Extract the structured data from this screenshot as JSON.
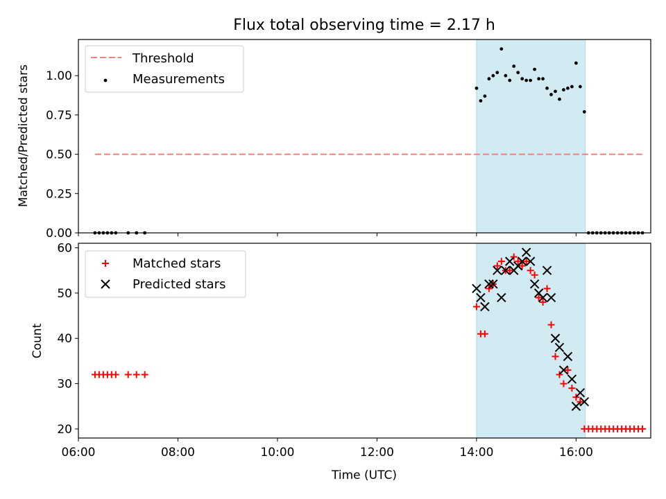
{
  "figure_title": "Flux total observing time = 2.17 h",
  "colors": {
    "threshold": "#f08080",
    "measurement": "#000000",
    "matched": "#ff0000",
    "predicted": "#000000",
    "shade": "#add8e6"
  },
  "chart_data": [
    {
      "type": "scatter",
      "title": "Flux total observing time = 2.17 h",
      "xlabel": "",
      "ylabel": "Matched/Predicted stars",
      "xlim": [
        "06:00",
        "17:30"
      ],
      "ylim": [
        0,
        1.23
      ],
      "xticks": [
        "06:00",
        "08:00",
        "10:00",
        "12:00",
        "14:00",
        "16:00"
      ],
      "yticks": [
        "0.00",
        "0.25",
        "0.50",
        "0.75",
        "1.00"
      ],
      "shaded_region": {
        "x_start": "14:00",
        "x_end": "16:11"
      },
      "grid": false,
      "legend_position": "top-left",
      "series": [
        {
          "name": "Threshold",
          "kind": "dashed-line",
          "x": [
            "06:20",
            "17:20"
          ],
          "y": [
            0.5,
            0.5
          ]
        },
        {
          "name": "Measurements",
          "kind": "points",
          "x": [
            "06:20",
            "06:25",
            "06:30",
            "06:35",
            "06:40",
            "06:45",
            "07:00",
            "07:10",
            "07:20",
            "14:00",
            "14:05",
            "14:10",
            "14:15",
            "14:20",
            "14:25",
            "14:30",
            "14:35",
            "14:40",
            "14:45",
            "14:50",
            "14:55",
            "15:00",
            "15:05",
            "15:10",
            "15:15",
            "15:20",
            "15:25",
            "15:30",
            "15:35",
            "15:40",
            "15:45",
            "15:50",
            "15:55",
            "16:00",
            "16:05",
            "16:10",
            "16:15",
            "16:20",
            "16:25",
            "16:30",
            "16:35",
            "16:40",
            "16:45",
            "16:50",
            "16:55",
            "17:00",
            "17:05",
            "17:10",
            "17:15",
            "17:20"
          ],
          "y": [
            0,
            0,
            0,
            0,
            0,
            0,
            0,
            0,
            0,
            0.92,
            0.84,
            0.87,
            0.98,
            1.0,
            1.02,
            1.17,
            1.0,
            0.97,
            1.06,
            1.02,
            0.98,
            0.97,
            0.97,
            1.04,
            0.98,
            0.98,
            0.92,
            0.88,
            0.9,
            0.85,
            0.91,
            0.92,
            0.93,
            1.08,
            0.93,
            0.77,
            0,
            0,
            0,
            0,
            0,
            0,
            0,
            0,
            0,
            0,
            0,
            0,
            0,
            0
          ]
        }
      ]
    },
    {
      "type": "scatter",
      "title": "",
      "xlabel": "Time (UTC)",
      "ylabel": "Count",
      "xlim": [
        "06:00",
        "17:30"
      ],
      "ylim": [
        18,
        61
      ],
      "xticks": [
        "06:00",
        "08:00",
        "10:00",
        "12:00",
        "14:00",
        "16:00"
      ],
      "yticks": [
        "20",
        "30",
        "40",
        "50",
        "60"
      ],
      "shaded_region": {
        "x_start": "14:00",
        "x_end": "16:11"
      },
      "grid": false,
      "legend_position": "top-left",
      "series": [
        {
          "name": "Matched stars",
          "marker": "plus",
          "x": [
            "06:20",
            "06:25",
            "06:30",
            "06:35",
            "06:40",
            "06:45",
            "07:00",
            "07:10",
            "07:20",
            "14:00",
            "14:05",
            "14:10",
            "14:15",
            "14:20",
            "14:25",
            "14:30",
            "14:35",
            "14:40",
            "14:45",
            "14:50",
            "14:55",
            "15:00",
            "15:05",
            "15:10",
            "15:15",
            "15:20",
            "15:25",
            "15:30",
            "15:35",
            "15:40",
            "15:45",
            "15:50",
            "15:55",
            "16:00",
            "16:05",
            "16:10",
            "16:15",
            "16:20",
            "16:25",
            "16:30",
            "16:35",
            "16:40",
            "16:45",
            "16:50",
            "16:55",
            "17:00",
            "17:05",
            "17:10",
            "17:15",
            "17:20"
          ],
          "y": [
            32,
            32,
            32,
            32,
            32,
            32,
            32,
            32,
            32,
            47,
            41,
            41,
            51,
            52,
            56,
            57,
            55,
            55,
            58,
            57,
            56,
            57,
            55,
            54,
            49,
            48,
            51,
            43,
            36,
            32,
            30,
            33,
            29,
            27,
            26,
            20,
            20,
            20,
            20,
            20,
            20,
            20,
            20,
            20,
            20,
            20,
            20,
            20,
            20,
            20
          ]
        },
        {
          "name": "Predicted stars",
          "marker": "x",
          "x": [
            "14:00",
            "14:05",
            "14:10",
            "14:15",
            "14:20",
            "14:25",
            "14:30",
            "14:35",
            "14:40",
            "14:45",
            "14:50",
            "14:55",
            "15:00",
            "15:05",
            "15:10",
            "15:15",
            "15:20",
            "15:25",
            "15:30",
            "15:35",
            "15:40",
            "15:45",
            "15:50",
            "15:55",
            "16:00",
            "16:05",
            "16:10"
          ],
          "y": [
            51,
            49,
            47,
            52,
            52,
            55,
            49,
            55,
            57,
            55,
            56,
            57,
            59,
            57,
            52,
            50,
            49,
            55,
            49,
            40,
            38,
            33,
            36,
            31,
            25,
            28,
            26
          ]
        }
      ]
    }
  ]
}
